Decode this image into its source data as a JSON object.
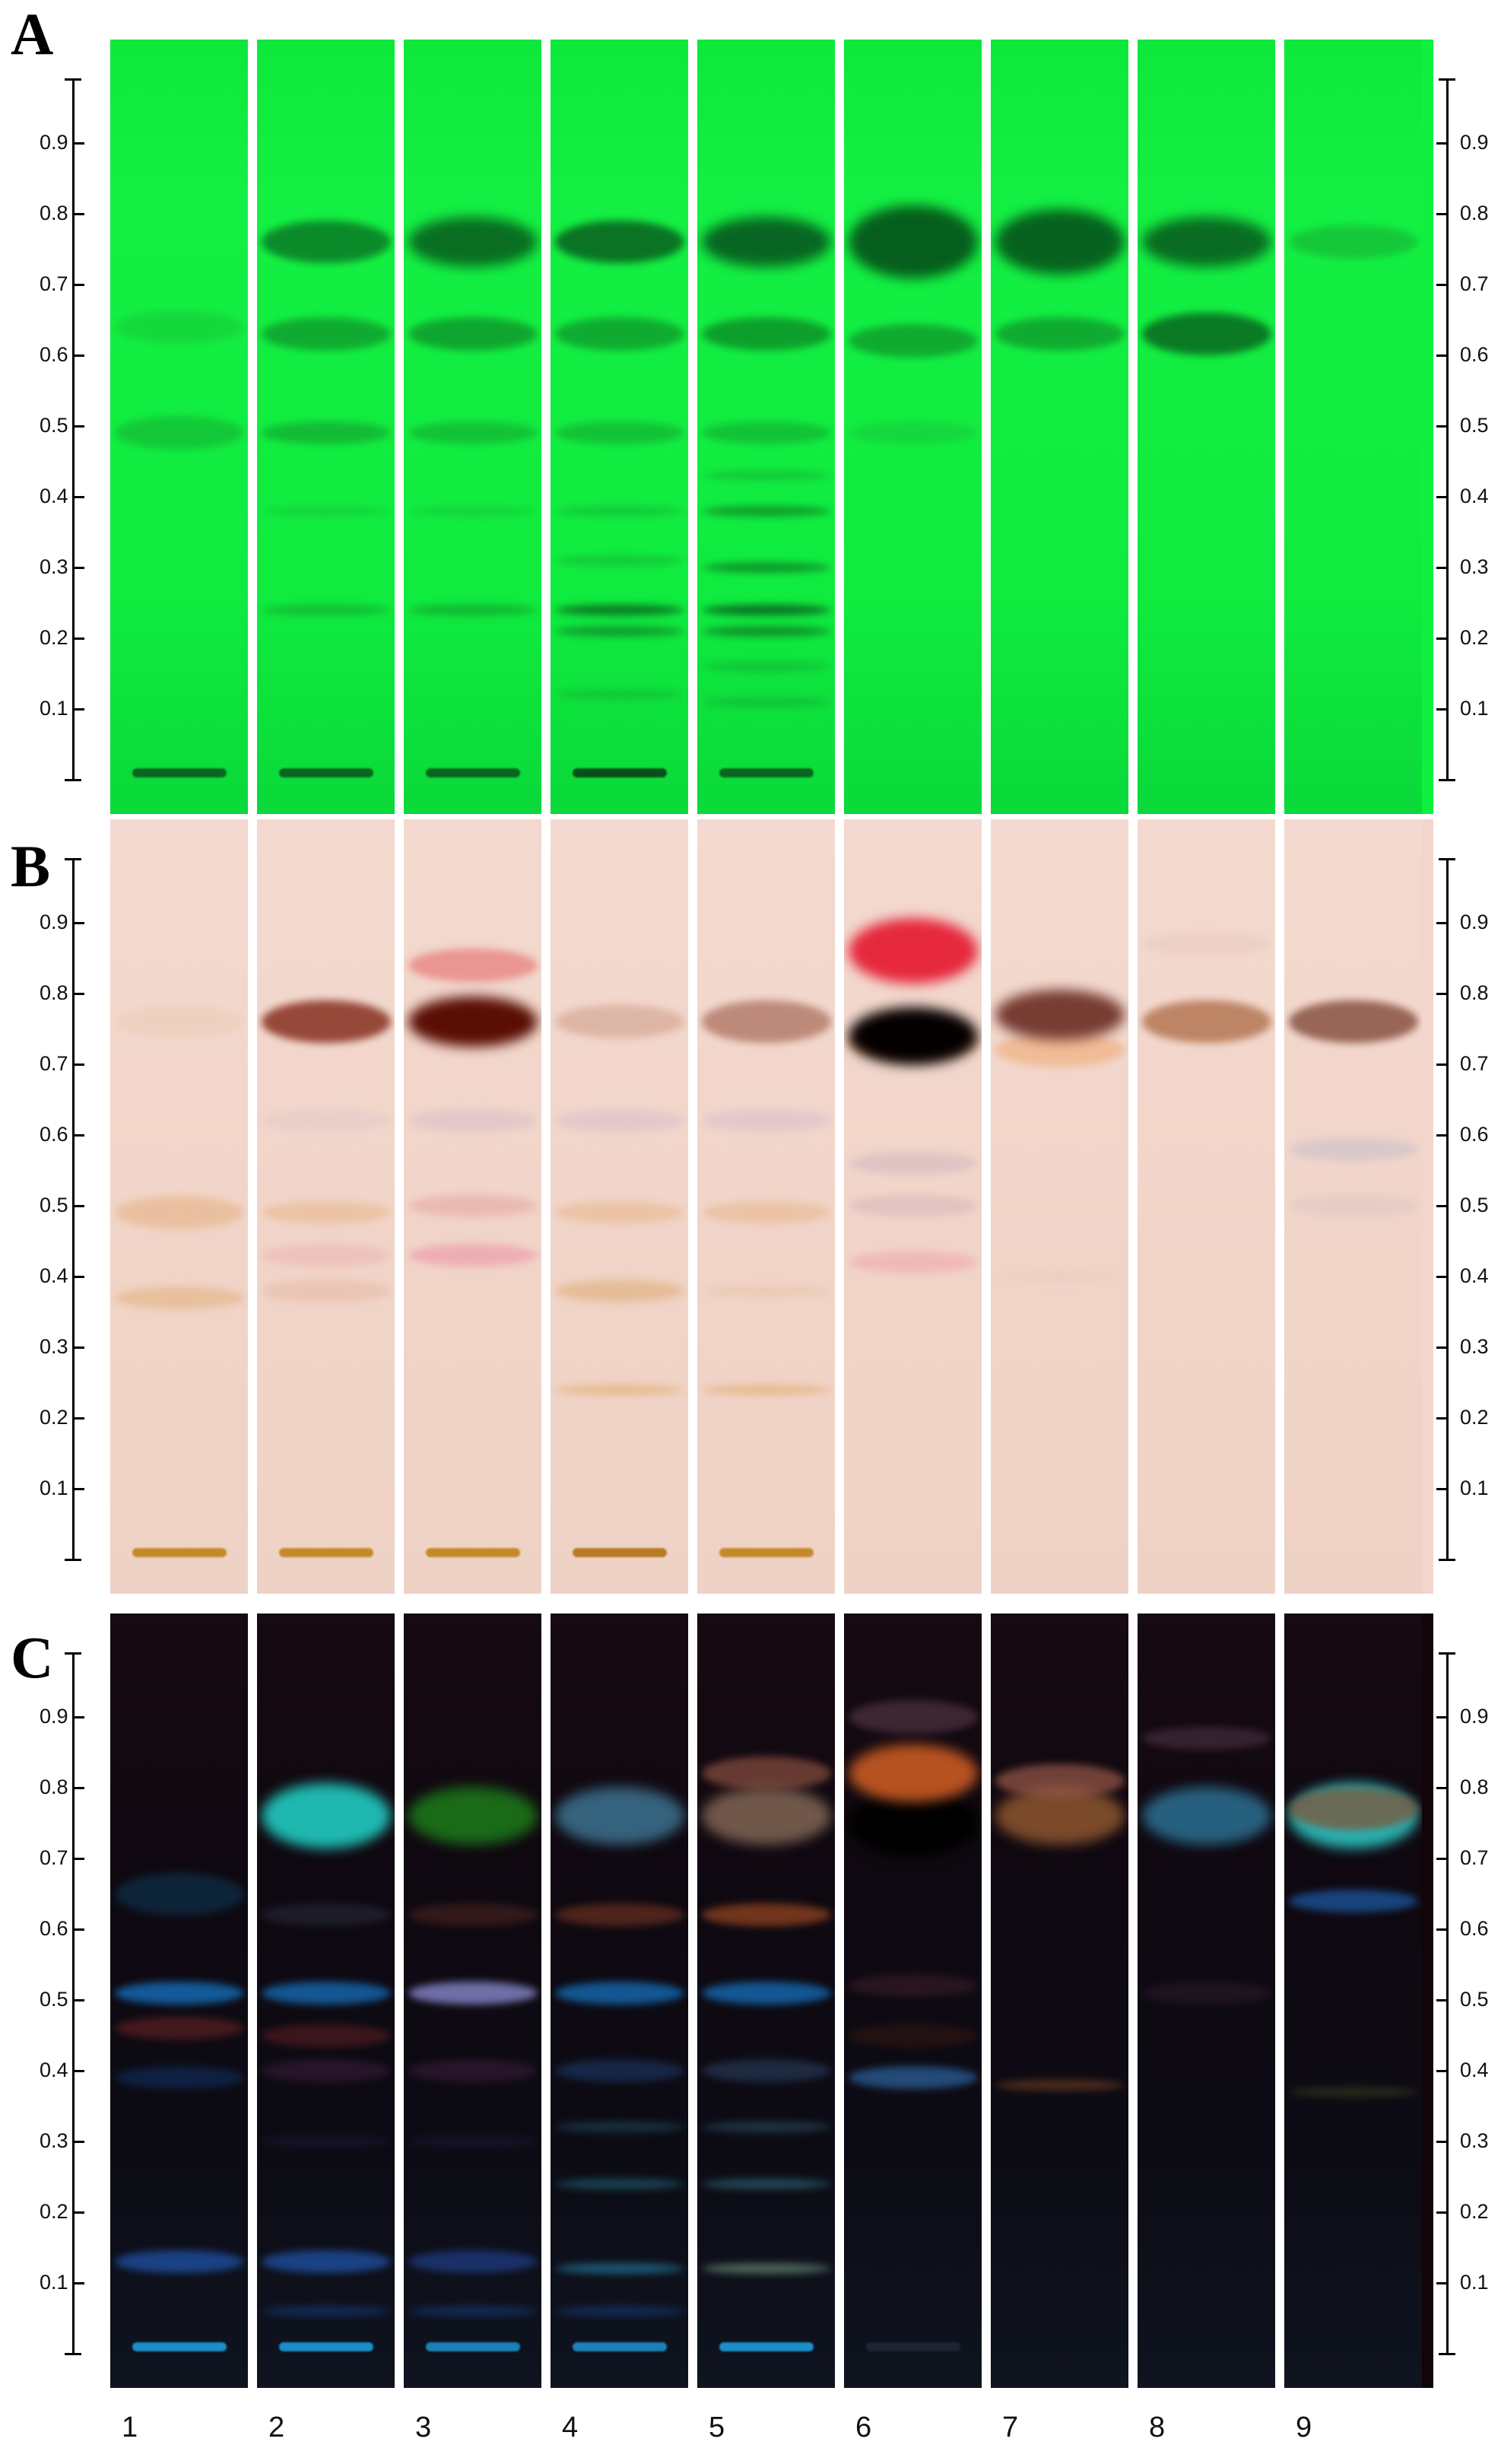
{
  "panels": [
    {
      "letter": "A",
      "theme": "uv254",
      "bg": "#0ef23d"
    },
    {
      "letter": "B",
      "theme": "visible",
      "bg": "#f2d6cc"
    },
    {
      "letter": "C",
      "theme": "uv366",
      "bg": "#120508"
    }
  ],
  "rf_ticks": [
    "0.9",
    "0.8",
    "0.7",
    "0.6",
    "0.5",
    "0.4",
    "0.3",
    "0.2",
    "0.1"
  ],
  "lane_numbers": [
    "1",
    "2",
    "3",
    "4",
    "5",
    "6",
    "7",
    "8",
    "9"
  ],
  "bands": {
    "A": [
      [
        [
          0.01,
          "#0a5a1c",
          0.9,
          1
        ],
        [
          0.49,
          "#14b032",
          0.6,
          3
        ],
        [
          0.64,
          "#18b836",
          0.4,
          3
        ]
      ],
      [
        [
          0.01,
          "#0a5a1c",
          0.9,
          1
        ],
        [
          0.24,
          "#12a02e",
          0.6,
          1
        ],
        [
          0.38,
          "#18b436",
          0.4,
          1
        ],
        [
          0.49,
          "#12a630",
          0.7,
          2
        ],
        [
          0.63,
          "#0f9a2c",
          0.8,
          3
        ],
        [
          0.76,
          "#0b8028",
          0.9,
          4
        ]
      ],
      [
        [
          0.01,
          "#0a5a1c",
          0.9,
          1
        ],
        [
          0.24,
          "#12a02e",
          0.7,
          1
        ],
        [
          0.38,
          "#18b436",
          0.4,
          1
        ],
        [
          0.49,
          "#12a630",
          0.6,
          2
        ],
        [
          0.63,
          "#0f9a2c",
          0.85,
          3
        ],
        [
          0.76,
          "#096e22",
          1,
          5
        ]
      ],
      [
        [
          0.01,
          "#094f18",
          1,
          1
        ],
        [
          0.12,
          "#16ae33",
          0.5,
          1
        ],
        [
          0.21,
          "#0f8d2a",
          0.8,
          1
        ],
        [
          0.24,
          "#0b7a24",
          1,
          1
        ],
        [
          0.31,
          "#16aa33",
          0.5,
          1
        ],
        [
          0.38,
          "#16aa33",
          0.5,
          1
        ],
        [
          0.49,
          "#12a630",
          0.6,
          2
        ],
        [
          0.63,
          "#0f9a2c",
          0.8,
          3
        ],
        [
          0.76,
          "#0a7424",
          1,
          4
        ]
      ],
      [
        [
          0.01,
          "#0a5a1c",
          0.9,
          1
        ],
        [
          0.11,
          "#15a632",
          0.5,
          1
        ],
        [
          0.16,
          "#15a632",
          0.5,
          1
        ],
        [
          0.21,
          "#0e8a28",
          0.9,
          1
        ],
        [
          0.24,
          "#0a7224",
          1,
          1
        ],
        [
          0.3,
          "#0e8a28",
          0.85,
          1
        ],
        [
          0.38,
          "#0e8a28",
          0.8,
          1
        ],
        [
          0.43,
          "#15a632",
          0.5,
          1
        ],
        [
          0.49,
          "#12a630",
          0.6,
          2
        ],
        [
          0.63,
          "#0d9229",
          0.85,
          3
        ],
        [
          0.76,
          "#086622",
          1,
          5
        ]
      ],
      [
        [
          0.49,
          "#18b836",
          0.4,
          2
        ],
        [
          0.62,
          "#0f9a2c",
          0.8,
          3
        ],
        [
          0.76,
          "#065e1c",
          1,
          8
        ]
      ],
      [
        [
          0.63,
          "#0f9a2c",
          0.8,
          3
        ],
        [
          0.76,
          "#06621e",
          1,
          7
        ]
      ],
      [
        [
          0.63,
          "#0a7a24",
          1,
          4
        ],
        [
          0.76,
          "#096c22",
          1,
          5
        ]
      ],
      [
        [
          0.76,
          "#16ae33",
          0.6,
          3
        ]
      ]
    ],
    "B": [
      [
        [
          0.01,
          "#c48a2a",
          1,
          1
        ],
        [
          0.37,
          "#e3b88a",
          0.7,
          2
        ],
        [
          0.49,
          "#e7b88e",
          0.7,
          3
        ],
        [
          0.76,
          "#eccdb8",
          0.6,
          3
        ]
      ],
      [
        [
          0.01,
          "#c48a2a",
          1,
          1
        ],
        [
          0.38,
          "#e6bba5",
          0.6,
          2
        ],
        [
          0.43,
          "#ecb5b5",
          0.6,
          2
        ],
        [
          0.49,
          "#e7b88e",
          0.6,
          2
        ],
        [
          0.62,
          "#e2c8c8",
          0.5,
          2
        ],
        [
          0.76,
          "#8e3a2a",
          0.9,
          4
        ]
      ],
      [
        [
          0.01,
          "#c48a2a",
          1,
          1
        ],
        [
          0.43,
          "#ec9fab",
          0.7,
          2
        ],
        [
          0.5,
          "#e4a9a5",
          0.6,
          2
        ],
        [
          0.62,
          "#d8bfc7",
          0.6,
          2
        ],
        [
          0.76,
          "#5a0e04",
          1,
          5
        ],
        [
          0.84,
          "#e46a6a",
          0.6,
          3
        ]
      ],
      [
        [
          0.01,
          "#b87a22",
          1,
          1
        ],
        [
          0.24,
          "#e2b27a",
          0.7,
          1
        ],
        [
          0.38,
          "#e1b383",
          0.7,
          2
        ],
        [
          0.49,
          "#e7b88e",
          0.6,
          2
        ],
        [
          0.62,
          "#d8c0cb",
          0.6,
          2
        ],
        [
          0.76,
          "#d9ad9b",
          0.8,
          3
        ]
      ],
      [
        [
          0.01,
          "#c48a2a",
          1,
          1
        ],
        [
          0.24,
          "#e2b27a",
          0.7,
          1
        ],
        [
          0.38,
          "#e6c0a0",
          0.5,
          1
        ],
        [
          0.49,
          "#e7b88e",
          0.6,
          2
        ],
        [
          0.62,
          "#d8c0cb",
          0.6,
          2
        ],
        [
          0.76,
          "#b88272",
          0.9,
          4
        ]
      ],
      [
        [
          0.42,
          "#f0a8b0",
          0.6,
          2
        ],
        [
          0.5,
          "#d8b8bc",
          0.6,
          2
        ],
        [
          0.56,
          "#d4b8c0",
          0.6,
          2
        ],
        [
          0.73,
          "#e8935a",
          0.6,
          3
        ],
        [
          0.74,
          "#050000",
          1,
          6
        ],
        [
          0.86,
          "#e6283c",
          1,
          7
        ]
      ],
      [
        [
          0.4,
          "#e8c8b8",
          0.4,
          1
        ],
        [
          0.72,
          "#f0b080",
          0.7,
          3
        ],
        [
          0.77,
          "#6a2c22",
          0.9,
          5
        ]
      ],
      [
        [
          0.87,
          "#e8c8c0",
          0.5,
          2
        ],
        [
          0.76,
          "#b87c5a",
          0.9,
          4
        ]
      ],
      [
        [
          0.5,
          "#dcc4c4",
          0.5,
          2
        ],
        [
          0.58,
          "#c8c0c8",
          0.6,
          2
        ],
        [
          0.76,
          "#8e5a4a",
          0.9,
          4
        ]
      ]
    ],
    "C": [
      [
        [
          0.01,
          "#1a8fc8",
          1,
          1
        ],
        [
          0.13,
          "#1f4fa0",
          0.8,
          2
        ],
        [
          0.39,
          "#0f2a55",
          0.7,
          2
        ],
        [
          0.46,
          "#6a2426",
          0.6,
          2
        ],
        [
          0.51,
          "#1463a8",
          0.9,
          2
        ],
        [
          0.65,
          "#0d3652",
          0.6,
          4
        ]
      ],
      [
        [
          0.01,
          "#1a8fc8",
          1,
          1
        ],
        [
          0.06,
          "#163a78",
          0.6,
          1
        ],
        [
          0.13,
          "#1f4fa0",
          0.8,
          2
        ],
        [
          0.3,
          "#221c3a",
          0.5,
          1
        ],
        [
          0.4,
          "#3a1c3a",
          0.6,
          2
        ],
        [
          0.45,
          "#5a1f22",
          0.6,
          2
        ],
        [
          0.51,
          "#145fa0",
          0.9,
          2
        ],
        [
          0.62,
          "#2a3040",
          0.5,
          2
        ],
        [
          0.76,
          "#1fb8b0",
          1,
          7
        ]
      ],
      [
        [
          0.01,
          "#1b82b8",
          1,
          1
        ],
        [
          0.06,
          "#163a78",
          0.6,
          1
        ],
        [
          0.13,
          "#1f3f8a",
          0.7,
          2
        ],
        [
          0.3,
          "#221c3a",
          0.5,
          1
        ],
        [
          0.4,
          "#3a1c3a",
          0.6,
          2
        ],
        [
          0.51,
          "#7a7ab8",
          0.9,
          2
        ],
        [
          0.62,
          "#4a2420",
          0.6,
          2
        ],
        [
          0.76,
          "#1a6a18",
          1,
          6
        ]
      ],
      [
        [
          0.01,
          "#1b82b8",
          1,
          1
        ],
        [
          0.06,
          "#163a78",
          0.6,
          1
        ],
        [
          0.12,
          "#206a8a",
          0.8,
          1
        ],
        [
          0.24,
          "#1d5a6a",
          0.7,
          1
        ],
        [
          0.32,
          "#1d4a5a",
          0.6,
          1
        ],
        [
          0.4,
          "#1d3a6a",
          0.6,
          2
        ],
        [
          0.51,
          "#145fa0",
          0.9,
          2
        ],
        [
          0.62,
          "#6a3020",
          0.7,
          2
        ],
        [
          0.76,
          "#3a6c88",
          0.9,
          6
        ]
      ],
      [
        [
          0.01,
          "#1a8fc8",
          1,
          1
        ],
        [
          0.12,
          "#5a7a6a",
          0.8,
          1
        ],
        [
          0.24,
          "#2a6070",
          0.7,
          1
        ],
        [
          0.32,
          "#2a5060",
          0.6,
          1
        ],
        [
          0.4,
          "#2a4060",
          0.6,
          2
        ],
        [
          0.51,
          "#145fa0",
          0.9,
          2
        ],
        [
          0.62,
          "#8a4020",
          0.8,
          2
        ],
        [
          0.76,
          "#7a6050",
          0.9,
          6
        ],
        [
          0.82,
          "#8a5040",
          0.7,
          3
        ]
      ],
      [
        [
          0.01,
          "#2a3040",
          0.6,
          1
        ],
        [
          0.39,
          "#2a5a90",
          0.8,
          2
        ],
        [
          0.45,
          "#3a1a14",
          0.5,
          2
        ],
        [
          0.52,
          "#3a1e28",
          0.6,
          2
        ],
        [
          0.75,
          "#000000",
          1,
          7
        ],
        [
          0.82,
          "#c85a22",
          0.9,
          6
        ],
        [
          0.9,
          "#5a3a4a",
          0.6,
          3
        ]
      ],
      [
        [
          0.38,
          "#6a3a20",
          0.7,
          1
        ],
        [
          0.76,
          "#7a4a2a",
          1,
          6
        ],
        [
          0.81,
          "#9a5a4a",
          0.7,
          3
        ]
      ],
      [
        [
          0.51,
          "#2a1a2a",
          0.6,
          2
        ],
        [
          0.76,
          "#2a6a8a",
          0.9,
          6
        ],
        [
          0.87,
          "#5a3a50",
          0.5,
          2
        ]
      ],
      [
        [
          0.37,
          "#3a3a20",
          0.6,
          1
        ],
        [
          0.64,
          "#1a4a88",
          0.9,
          2
        ],
        [
          0.76,
          "#2ab0b0",
          1,
          7
        ],
        [
          0.77,
          "#7a5a40",
          0.8,
          4
        ]
      ]
    ]
  }
}
